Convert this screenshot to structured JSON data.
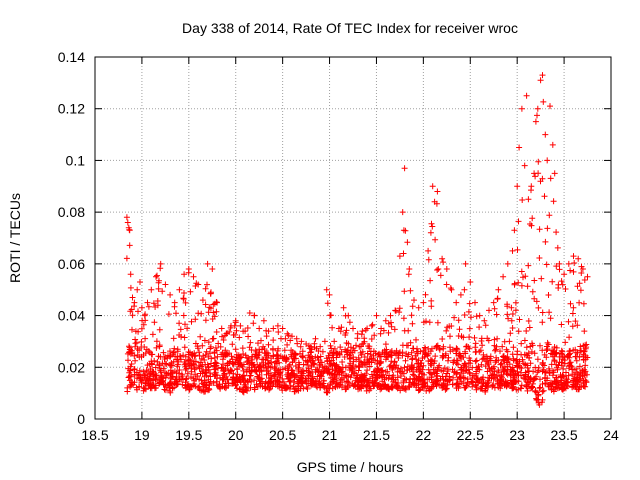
{
  "chart_data": {
    "type": "scatter",
    "title": "Day 338 of 2014, Rate Of TEC Index for receiver wroc",
    "xlabel": "GPS time / hours",
    "ylabel": "ROTI / TECUs",
    "xlim": [
      18.5,
      24
    ],
    "ylim": [
      0,
      0.14
    ],
    "xticks": [
      "18.5",
      "19",
      "19.5",
      "20",
      "20.5",
      "21",
      "21.5",
      "22",
      "22.5",
      "23",
      "23.5",
      "24"
    ],
    "yticks": [
      "0",
      "0.02",
      "0.04",
      "0.06",
      "0.08",
      "0.1",
      "0.12",
      "0.14"
    ],
    "grid": true,
    "marker": "+",
    "series": [
      {
        "name": "ROTI",
        "color": "#ff0000",
        "x": [
          18.84,
          18.85,
          18.86,
          18.87,
          18.88,
          18.9,
          18.92,
          18.95,
          18.98,
          19.0,
          19.03,
          19.06,
          19.1,
          19.15,
          19.2,
          19.25,
          19.3,
          19.35,
          19.4,
          19.45,
          19.5,
          19.55,
          19.6,
          19.65,
          19.7,
          19.75,
          19.8,
          19.85,
          19.9,
          19.95,
          20.0,
          20.05,
          20.1,
          20.15,
          20.2,
          20.25,
          20.3,
          20.35,
          20.4,
          20.45,
          20.5,
          20.55,
          20.6,
          20.65,
          20.7,
          20.75,
          20.8,
          20.85,
          20.9,
          20.95,
          20.97,
          21.0,
          21.05,
          21.1,
          21.15,
          21.2,
          21.25,
          21.3,
          21.35,
          21.4,
          21.45,
          21.5,
          21.55,
          21.6,
          21.65,
          21.7,
          21.75,
          21.78,
          21.8,
          21.85,
          21.9,
          21.95,
          22.0,
          22.05,
          22.08,
          22.1,
          22.12,
          22.15,
          22.2,
          22.25,
          22.3,
          22.35,
          22.4,
          22.45,
          22.5,
          22.55,
          22.6,
          22.65,
          22.7,
          22.75,
          22.8,
          22.85,
          22.9,
          22.95,
          22.97,
          23.0,
          23.02,
          23.05,
          23.08,
          23.1,
          23.12,
          23.15,
          23.18,
          23.2,
          23.22,
          23.25,
          23.27,
          23.3,
          23.32,
          23.35,
          23.38,
          23.4,
          23.45,
          23.5,
          23.55,
          23.6,
          23.65,
          23.7,
          23.75
        ],
        "y_low": [
          0.008,
          0.01,
          0.012,
          0.011,
          0.013,
          0.012,
          0.014,
          0.011,
          0.013,
          0.012,
          0.01,
          0.013,
          0.011,
          0.012,
          0.013,
          0.011,
          0.01,
          0.012,
          0.014,
          0.012,
          0.011,
          0.013,
          0.012,
          0.01,
          0.011,
          0.012,
          0.013,
          0.011,
          0.012,
          0.013,
          0.012,
          0.011,
          0.01,
          0.012,
          0.011,
          0.013,
          0.012,
          0.011,
          0.013,
          0.012,
          0.011,
          0.012,
          0.011,
          0.01,
          0.012,
          0.011,
          0.012,
          0.013,
          0.011,
          0.012,
          0.01,
          0.011,
          0.012,
          0.013,
          0.011,
          0.012,
          0.013,
          0.011,
          0.012,
          0.01,
          0.012,
          0.013,
          0.011,
          0.012,
          0.011,
          0.013,
          0.01,
          0.012,
          0.011,
          0.012,
          0.013,
          0.011,
          0.012,
          0.01,
          0.011,
          0.012,
          0.013,
          0.011,
          0.012,
          0.011,
          0.013,
          0.012,
          0.011,
          0.012,
          0.013,
          0.011,
          0.012,
          0.01,
          0.011,
          0.012,
          0.011,
          0.013,
          0.012,
          0.011,
          0.012,
          0.01,
          0.011,
          0.012,
          0.013,
          0.01,
          0.011,
          0.012,
          0.01,
          0.008,
          0.006,
          0.005,
          0.007,
          0.009,
          0.011,
          0.012,
          0.01,
          0.011,
          0.012,
          0.011,
          0.013,
          0.012,
          0.011,
          0.012,
          0.013
        ],
        "y_high": [
          0.078,
          0.076,
          0.074,
          0.073,
          0.056,
          0.047,
          0.045,
          0.05,
          0.053,
          0.043,
          0.04,
          0.045,
          0.05,
          0.055,
          0.06,
          0.052,
          0.048,
          0.045,
          0.05,
          0.056,
          0.058,
          0.055,
          0.052,
          0.046,
          0.06,
          0.058,
          0.045,
          0.035,
          0.033,
          0.036,
          0.038,
          0.036,
          0.034,
          0.041,
          0.04,
          0.035,
          0.038,
          0.034,
          0.035,
          0.036,
          0.035,
          0.033,
          0.032,
          0.031,
          0.03,
          0.029,
          0.028,
          0.031,
          0.028,
          0.03,
          0.05,
          0.048,
          0.03,
          0.035,
          0.043,
          0.04,
          0.035,
          0.033,
          0.034,
          0.035,
          0.036,
          0.04,
          0.035,
          0.038,
          0.04,
          0.042,
          0.063,
          0.08,
          0.097,
          0.058,
          0.046,
          0.043,
          0.045,
          0.065,
          0.072,
          0.09,
          0.084,
          0.088,
          0.062,
          0.058,
          0.05,
          0.045,
          0.048,
          0.06,
          0.053,
          0.045,
          0.04,
          0.038,
          0.042,
          0.045,
          0.05,
          0.055,
          0.06,
          0.065,
          0.073,
          0.09,
          0.105,
          0.12,
          0.098,
          0.125,
          0.085,
          0.09,
          0.095,
          0.115,
          0.12,
          0.131,
          0.133,
          0.11,
          0.1,
          0.121,
          0.106,
          0.095,
          0.06,
          0.056,
          0.06,
          0.063,
          0.062,
          0.058,
          0.055
        ]
      }
    ]
  }
}
